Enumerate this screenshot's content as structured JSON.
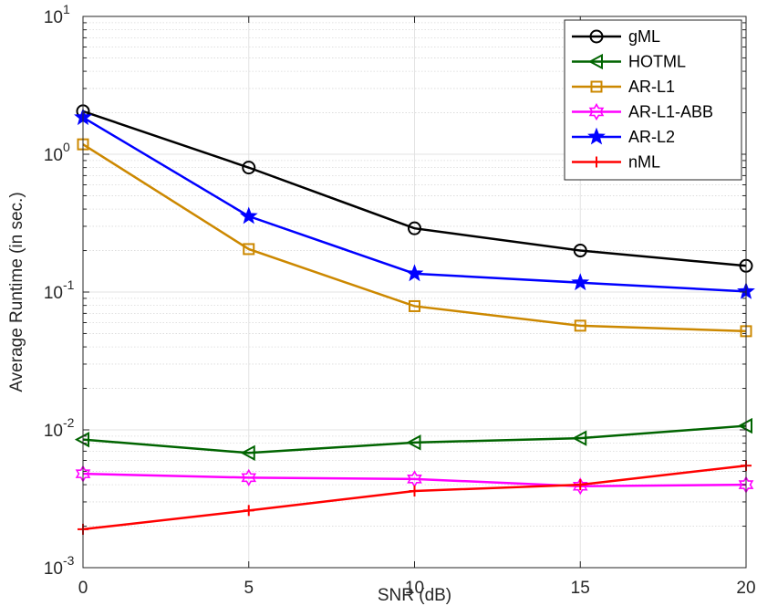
{
  "chart_data": {
    "type": "line",
    "title": "",
    "xlabel": "SNR (dB)",
    "ylabel": "Average Runtime (in sec.)",
    "x": [
      0,
      5,
      10,
      15,
      20
    ],
    "xlim": [
      0,
      20
    ],
    "xticks": [
      0,
      5,
      10,
      15,
      20
    ],
    "ylim": [
      0.001,
      10
    ],
    "yscale": "log",
    "yticks": [
      {
        "value": 0.001,
        "base": "10",
        "exp": "-3"
      },
      {
        "value": 0.01,
        "base": "10",
        "exp": "-2"
      },
      {
        "value": 0.1,
        "base": "10",
        "exp": "-1"
      },
      {
        "value": 1,
        "base": "10",
        "exp": "0"
      },
      {
        "value": 10,
        "base": "10",
        "exp": "1"
      }
    ],
    "grid": true,
    "legend_position": "top-right",
    "series": [
      {
        "name": "gML",
        "color": "#000000",
        "marker": "circle",
        "values": [
          2.05,
          0.8,
          0.29,
          0.2,
          0.155
        ]
      },
      {
        "name": "HOTML",
        "color": "#006400",
        "marker": "triangle-left",
        "values": [
          0.0085,
          0.0068,
          0.0081,
          0.0087,
          0.0107
        ]
      },
      {
        "name": "AR-L1",
        "color": "#CC8800",
        "marker": "square",
        "values": [
          1.18,
          0.205,
          0.079,
          0.057,
          0.052
        ]
      },
      {
        "name": "AR-L1-ABB",
        "color": "#FF00FF",
        "marker": "hexagram",
        "values": [
          0.0048,
          0.0045,
          0.0044,
          0.0039,
          0.004
        ]
      },
      {
        "name": "AR-L2",
        "color": "#0000FF",
        "marker": "star",
        "values": [
          1.85,
          0.355,
          0.136,
          0.117,
          0.101
        ]
      },
      {
        "name": "nML",
        "color": "#FF0000",
        "marker": "plus",
        "values": [
          0.0019,
          0.0026,
          0.0036,
          0.004,
          0.0055
        ]
      }
    ]
  }
}
